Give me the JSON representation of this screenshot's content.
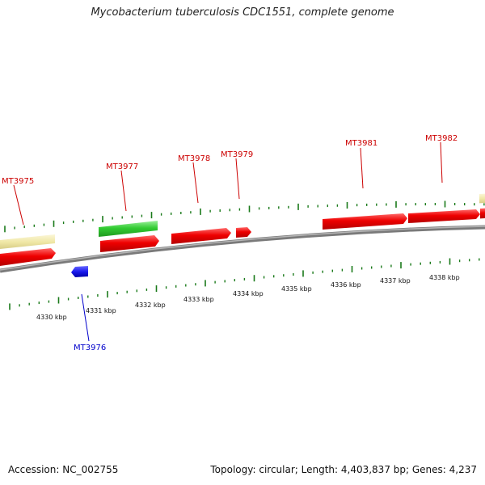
{
  "title": "Mycobacterium tuberculosis CDC1551, complete genome",
  "footer": {
    "accession": "Accession: NC_002755",
    "summary": "Topology: circular; Length: 4,403,837 bp; Genes: 4,237"
  },
  "colors": {
    "forward_gene": "#ee0000",
    "reverse_gene": "#1a1aee",
    "rna_feature": "#33cc33",
    "other_feature": "#f0e8a8",
    "backbone": "#888888",
    "tick": "#1a7a1a",
    "label_forward": "#cc0000",
    "label_reverse": "#0000cc"
  },
  "scale_labels": [
    "4330 kbp",
    "4331 kbp",
    "4332 kbp",
    "4333 kbp",
    "4334 kbp",
    "4335 kbp",
    "4336 kbp",
    "4337 kbp",
    "4338 kbp"
  ],
  "genes": [
    {
      "name": "MT3975",
      "strand": "forward"
    },
    {
      "name": "MT3976",
      "strand": "reverse"
    },
    {
      "name": "MT3977",
      "strand": "forward"
    },
    {
      "name": "MT3978",
      "strand": "forward"
    },
    {
      "name": "MT3979",
      "strand": "forward"
    },
    {
      "name": "MT3981",
      "strand": "forward"
    },
    {
      "name": "MT3982",
      "strand": "forward"
    }
  ]
}
